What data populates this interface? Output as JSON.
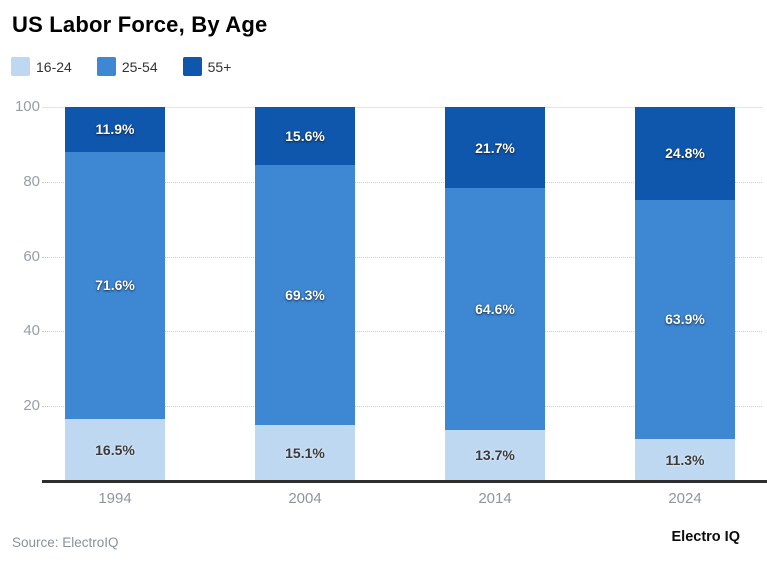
{
  "title": "US Labor Force, By Age",
  "legend": {
    "items": [
      {
        "label": "16-24",
        "color": "#bed8f2"
      },
      {
        "label": "25-54",
        "color": "#3d87d3"
      },
      {
        "label": "55+",
        "color": "#0f57ad"
      }
    ]
  },
  "chart_data": {
    "type": "bar",
    "stacked": true,
    "unit": "%",
    "title": "US Labor Force, By Age",
    "categories": [
      "1994",
      "2004",
      "2014",
      "2024"
    ],
    "series": [
      {
        "name": "16-24",
        "color": "#bed8f2",
        "label_color": "#3a3a3a",
        "values": [
          16.5,
          15.1,
          13.7,
          11.3
        ]
      },
      {
        "name": "25-54",
        "color": "#3d87d3",
        "label_color": "#ffffff",
        "values": [
          71.6,
          69.3,
          64.6,
          63.9
        ]
      },
      {
        "name": "55+",
        "color": "#0f57ad",
        "label_color": "#ffffff",
        "values": [
          11.9,
          15.6,
          21.7,
          24.8
        ]
      }
    ],
    "ylim": [
      0,
      100
    ],
    "yticks": [
      20,
      40,
      60,
      80,
      100
    ],
    "grid": true,
    "legend_position": "top-left",
    "xlabel": "",
    "ylabel": ""
  },
  "footer": {
    "source": "Source: ElectroIQ",
    "brand": "Electro IQ"
  }
}
